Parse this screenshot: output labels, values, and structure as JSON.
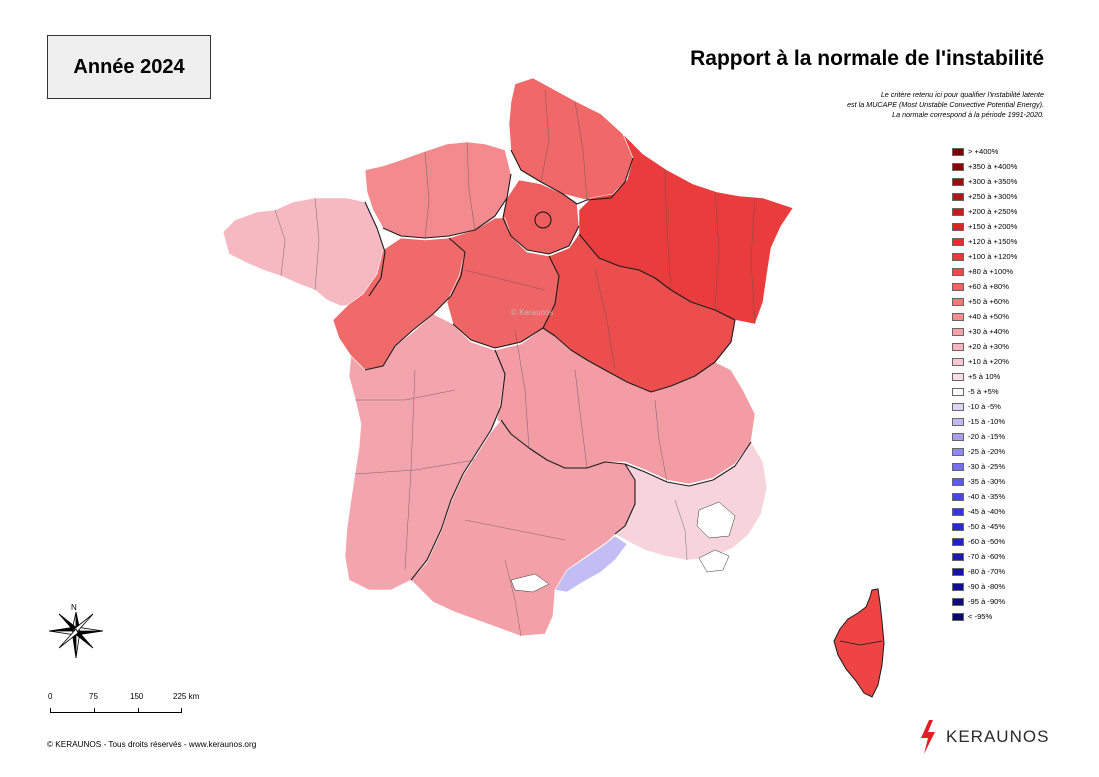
{
  "header": {
    "year_label": "Année 2024",
    "title": "Rapport à la normale de l'instabilité",
    "note_lines": [
      "Le critère retenu ici pour qualifier l'instabilité latente",
      "est la MUCAPE (Most Unstable Convective Potential Energy).",
      "La normale correspond à la période 1991-2020."
    ]
  },
  "legend": [
    {
      "label": "> +400%",
      "color": "#7a0000"
    },
    {
      "label": "+350 à +400%",
      "color": "#8f0000"
    },
    {
      "label": "+300 à +350%",
      "color": "#a00d0d"
    },
    {
      "label": "+250 à +300%",
      "color": "#b31616"
    },
    {
      "label": "+200 à +250%",
      "color": "#c21e1e"
    },
    {
      "label": "+150 à +200%",
      "color": "#d42828"
    },
    {
      "label": "+120 à +150%",
      "color": "#e03030"
    },
    {
      "label": "+100 à +120%",
      "color": "#ec3838"
    },
    {
      "label": "+80 à +100%",
      "color": "#f24848"
    },
    {
      "label": "+60 à +80%",
      "color": "#f56262"
    },
    {
      "label": "+50 à +60%",
      "color": "#f57878"
    },
    {
      "label": "+40 à +50%",
      "color": "#f48e8e"
    },
    {
      "label": "+30 à +40%",
      "color": "#f4a2a8"
    },
    {
      "label": "+20 à +30%",
      "color": "#f6b5bd"
    },
    {
      "label": "+10 à +20%",
      "color": "#f8c8d2"
    },
    {
      "label": "+5 à 10%",
      "color": "#fbdbe4"
    },
    {
      "label": "-5 à +5%",
      "color": "#ffffff"
    },
    {
      "label": "-10 à -5%",
      "color": "#dcd3f5"
    },
    {
      "label": "-15 à -10%",
      "color": "#c2b8f2"
    },
    {
      "label": "-20 à -15%",
      "color": "#a99ff0"
    },
    {
      "label": "-25 à -20%",
      "color": "#9088ee"
    },
    {
      "label": "-30 à -25%",
      "color": "#7770ee"
    },
    {
      "label": "-35 à -30%",
      "color": "#5f5aee"
    },
    {
      "label": "-40 à -35%",
      "color": "#4846e8"
    },
    {
      "label": "-45 à -40%",
      "color": "#3636e0"
    },
    {
      "label": "-50 à -45%",
      "color": "#2a2ad4"
    },
    {
      "label": "-60 à -50%",
      "color": "#2222c4"
    },
    {
      "label": "-70 à -60%",
      "color": "#1a1ab2"
    },
    {
      "label": "-80 à -70%",
      "color": "#1414a0"
    },
    {
      "label": "-90 à -80%",
      "color": "#10108e"
    },
    {
      "label": "-95 à -90%",
      "color": "#0c0c7e"
    },
    {
      "label": "< -95%",
      "color": "#08086e"
    }
  ],
  "map": {
    "regions": [
      {
        "name": "Bretagne",
        "class": "+10 à +20%",
        "color": "#f6b9c2"
      },
      {
        "name": "Normandie",
        "class": "+40 à +50%",
        "color": "#f38a8e"
      },
      {
        "name": "Hauts-de-France",
        "class": "+60 à +80%",
        "color": "#f06868"
      },
      {
        "name": "Île-de-France",
        "class": "+60 à +80%",
        "color": "#ef5e5e"
      },
      {
        "name": "Grand Est",
        "class": "+100 à +120%",
        "color": "#ea3c3c"
      },
      {
        "name": "Pays de la Loire",
        "class": "+60 à +80%",
        "color": "#f06a6a"
      },
      {
        "name": "Centre-Val de Loire",
        "class": "+60 à +80%",
        "color": "#ef6464"
      },
      {
        "name": "Bourgogne-Franche-Comté",
        "class": "+80 à +100%",
        "color": "#ec4e4e"
      },
      {
        "name": "Nouvelle-Aquitaine",
        "class": "+30 à +40%",
        "color": "#f4a4ad"
      },
      {
        "name": "Auvergne-Rhône-Alpes",
        "class": "+30 à +40%",
        "color": "#f39ca4"
      },
      {
        "name": "Occitanie",
        "class": "+30 à +40%",
        "color": "#f3a0a8"
      },
      {
        "name": "Provence-Alpes-Côte d'Azur",
        "class": "+5 à 10%",
        "color": "#f7d3dc"
      },
      {
        "name": "Hérault",
        "class": "-15 à -10%",
        "color": "#c2bdf4"
      },
      {
        "name": "Corse",
        "class": "+80 à +100%",
        "color": "#ee4444"
      }
    ],
    "watermark": "© Keraunos"
  },
  "compass": {
    "north_label": "N"
  },
  "scale": {
    "labels": [
      "0",
      "75",
      "150",
      "225 km"
    ]
  },
  "footer": {
    "copyright": "© KERAUNOS - Tous droits réservés - www.keraunos.org"
  },
  "logo": {
    "text": "KERAUNOS"
  }
}
